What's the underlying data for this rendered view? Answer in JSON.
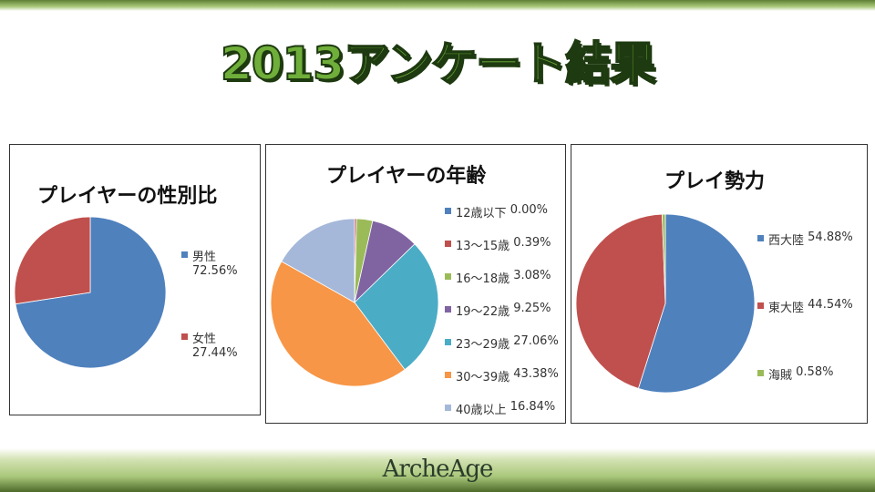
{
  "title": "2013アンケート結果",
  "logo": "ArcheAge",
  "chart_data": [
    {
      "type": "pie",
      "title": "プレイヤーの性別比",
      "legend_position": "right",
      "categories": [
        "男性",
        "女性"
      ],
      "values": [
        72.56,
        27.44
      ],
      "labels": [
        "72.56%",
        "27.44%"
      ],
      "colors": [
        "#4f81bd",
        "#c0504d"
      ]
    },
    {
      "type": "pie",
      "title": "プレイヤーの年齢",
      "legend_position": "right",
      "categories": [
        "12歳以下",
        "13～15歳",
        "16～18歳",
        "19～22歳",
        "23～29歳",
        "30～39歳",
        "40歳以上"
      ],
      "values": [
        0.0,
        0.39,
        3.08,
        9.25,
        27.06,
        43.38,
        16.84
      ],
      "labels": [
        "0.00%",
        "0.39%",
        "3.08%",
        "9.25%",
        "27.06%",
        "43.38%",
        "16.84%"
      ],
      "colors": [
        "#4f81bd",
        "#c0504d",
        "#9bbb59",
        "#8064a2",
        "#4bacc6",
        "#f79646",
        "#a5b8da"
      ]
    },
    {
      "type": "pie",
      "title": "プレイ勢力",
      "legend_position": "right",
      "categories": [
        "西大陸",
        "東大陸",
        "海賊"
      ],
      "values": [
        54.88,
        44.54,
        0.58
      ],
      "labels": [
        "54.88%",
        "44.54%",
        "0.58%"
      ],
      "colors": [
        "#4f81bd",
        "#c0504d",
        "#9bbb59"
      ]
    }
  ]
}
